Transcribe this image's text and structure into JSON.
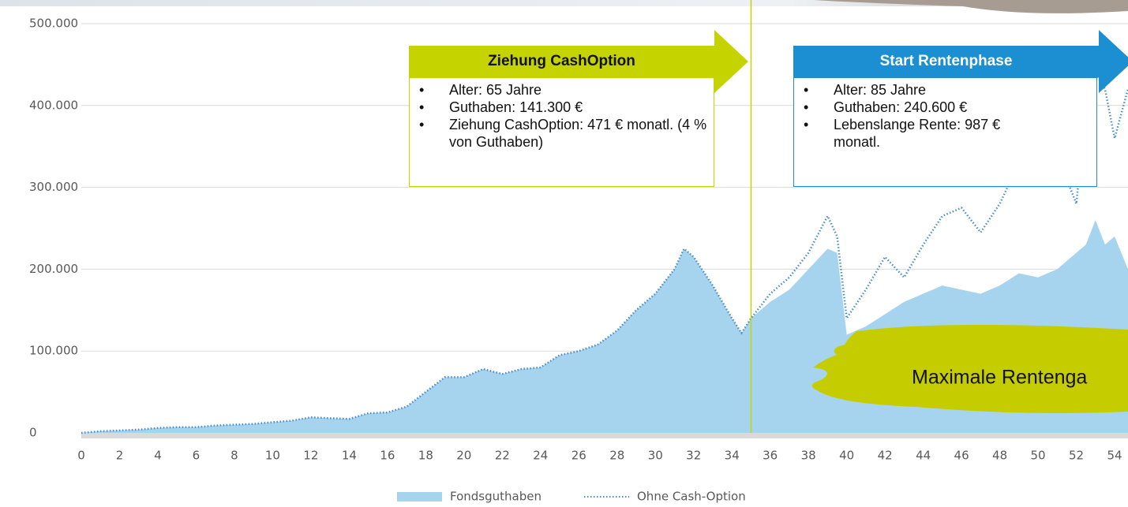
{
  "chart_data": {
    "type": "area",
    "x": [
      0,
      1,
      2,
      3,
      4,
      5,
      6,
      7,
      8,
      9,
      10,
      11,
      12,
      13,
      14,
      15,
      16,
      17,
      18,
      19,
      20,
      21,
      22,
      23,
      24,
      25,
      26,
      27,
      28,
      29,
      30,
      31,
      31.5,
      32,
      33,
      34,
      34.5,
      35,
      36,
      37,
      38,
      39,
      39.5,
      40,
      41,
      42,
      43,
      44,
      45,
      46,
      47,
      48,
      49,
      50,
      51,
      52,
      52.5,
      53,
      53.5,
      54,
      54.7
    ],
    "series": [
      {
        "name": "Fondsguthaben",
        "color": "#a6d4ee",
        "style": "area",
        "values": [
          0,
          2000,
          3000,
          4000,
          6000,
          7000,
          7000,
          9000,
          10000,
          11000,
          13000,
          15000,
          19000,
          18000,
          17000,
          24000,
          25000,
          32000,
          50000,
          68000,
          68000,
          78000,
          72000,
          78000,
          80000,
          95000,
          100000,
          108000,
          125000,
          150000,
          170000,
          200000,
          225000,
          215000,
          180000,
          140000,
          122000,
          140000,
          160000,
          175000,
          200000,
          225000,
          220000,
          120000,
          130000,
          145000,
          160000,
          170000,
          180000,
          175000,
          170000,
          180000,
          195000,
          190000,
          200000,
          220000,
          230000,
          260000,
          230000,
          240000,
          200000
        ]
      },
      {
        "name": "Ohne Cash-Option",
        "color": "#4a8ec8",
        "style": "dotted",
        "values": [
          0,
          2000,
          3000,
          4000,
          6000,
          7000,
          7000,
          9000,
          10000,
          11000,
          13000,
          15000,
          19000,
          18000,
          17000,
          24000,
          25000,
          32000,
          50000,
          68000,
          68000,
          78000,
          72000,
          78000,
          80000,
          95000,
          100000,
          108000,
          125000,
          150000,
          170000,
          200000,
          225000,
          215000,
          180000,
          140000,
          122000,
          140000,
          170000,
          190000,
          220000,
          265000,
          240000,
          140000,
          175000,
          215000,
          190000,
          230000,
          265000,
          275000,
          245000,
          280000,
          330000,
          320000,
          340000,
          280000,
          400000,
          440000,
          420000,
          360000,
          420000
        ]
      }
    ],
    "xlim": [
      0,
      54.7
    ],
    "xticks": [
      0,
      2,
      4,
      6,
      8,
      10,
      12,
      14,
      16,
      18,
      20,
      22,
      24,
      26,
      28,
      30,
      32,
      34,
      36,
      38,
      40,
      42,
      44,
      46,
      48,
      50,
      52,
      54
    ],
    "ylim": [
      0,
      500000
    ],
    "yticks": [
      0,
      {
        "value": 100000,
        "label": "100.000"
      },
      {
        "value": 200000,
        "label": "200.000"
      },
      {
        "value": 300000,
        "label": "300.000"
      },
      {
        "value": 400000,
        "label": "400.000"
      },
      {
        "value": 500000,
        "label": "500.000"
      }
    ],
    "grid": true,
    "marker_line": {
      "x": 35,
      "color": "#c5d300"
    },
    "callouts": [
      {
        "title": "Ziehung CashOption",
        "color": "#c5d300",
        "items": [
          "Alter: 65 Jahre",
          "Guthaben: 141.300 €",
          "Ziehung CashOption: 471 € monatl. (4 % von Guthaben)"
        ]
      },
      {
        "title": "Start Rentenphase",
        "color": "#1b8fd2",
        "items": [
          "Alter: 85 Jahre",
          "Guthaben: 240.600 €",
          "Lebenslange Rente: 987 € monatl."
        ]
      }
    ],
    "highlight": "Maximale Rentenga"
  }
}
